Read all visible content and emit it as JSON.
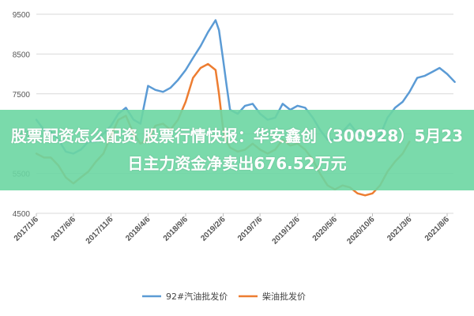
{
  "colors": {
    "series_92": "#5b9bd5",
    "series_diesel": "#ed7d31",
    "grid": "#d9d9d9",
    "banner": "#6cd6a3"
  },
  "overlay": {
    "title": "股票配资怎么配资 股票行情快报：华安鑫创（300928）5月23日主力资金净卖出676.52万元"
  },
  "chart_data": {
    "type": "line",
    "title": "",
    "xlabel": "",
    "ylabel": "",
    "ylim": [
      4500,
      9500
    ],
    "y_ticks": [
      "9500",
      "8500",
      "7500",
      "6500",
      "5500",
      "4500"
    ],
    "y_tick_values": [
      9500,
      8500,
      7500,
      6500,
      5500,
      4500
    ],
    "x_tick_labels": [
      "2017/1/6",
      "2017/6/6",
      "2017/11/6",
      "2018/4/6",
      "2018/9/6",
      "2019/2/6",
      "2019/7/6",
      "2019/12/6",
      "2020/5/6",
      "2020/10/6",
      "2021/3/6",
      "2021/8/6"
    ],
    "legend_position": "bottom",
    "grid": true,
    "series": [
      {
        "name": "92#汽油批发价",
        "color_key": "series_92",
        "points": [
          [
            "2017/1/6",
            6850
          ],
          [
            "2017/2/6",
            6600
          ],
          [
            "2017/3/6",
            6550
          ],
          [
            "2017/4/6",
            6350
          ],
          [
            "2017/5/6",
            6050
          ],
          [
            "2017/6/6",
            6000
          ],
          [
            "2017/7/6",
            6100
          ],
          [
            "2017/8/6",
            6300
          ],
          [
            "2017/9/6",
            6300
          ],
          [
            "2017/10/6",
            6500
          ],
          [
            "2017/11/6",
            6700
          ],
          [
            "2017/12/6",
            7000
          ],
          [
            "2018/1/6",
            7150
          ],
          [
            "2018/2/6",
            6850
          ],
          [
            "2018/3/6",
            6750
          ],
          [
            "2018/4/6",
            7700
          ],
          [
            "2018/5/6",
            7600
          ],
          [
            "2018/6/6",
            7550
          ],
          [
            "2018/7/6",
            7650
          ],
          [
            "2018/8/6",
            7850
          ],
          [
            "2018/9/6",
            8100
          ],
          [
            "2018/10/6",
            8400
          ],
          [
            "2018/11/6",
            8700
          ],
          [
            "2018/12/6",
            9050
          ],
          [
            "2019/1/6",
            9350
          ],
          [
            "2019/1/20",
            9100
          ],
          [
            "2019/2/6",
            8350
          ],
          [
            "2019/2/20",
            7700
          ],
          [
            "2019/3/6",
            7100
          ],
          [
            "2019/4/6",
            7000
          ],
          [
            "2019/5/6",
            7200
          ],
          [
            "2019/6/6",
            7250
          ],
          [
            "2019/7/6",
            7000
          ],
          [
            "2019/8/6",
            6850
          ],
          [
            "2019/9/6",
            6900
          ],
          [
            "2019/10/6",
            7250
          ],
          [
            "2019/11/6",
            7100
          ],
          [
            "2019/12/6",
            7200
          ],
          [
            "2020/1/6",
            7150
          ],
          [
            "2020/2/6",
            6900
          ],
          [
            "2020/3/6",
            6600
          ],
          [
            "2020/4/6",
            6350
          ],
          [
            "2020/5/6",
            6350
          ],
          [
            "2020/6/6",
            6550
          ],
          [
            "2020/7/6",
            6750
          ],
          [
            "2020/8/6",
            6500
          ],
          [
            "2020/9/6",
            6400
          ],
          [
            "2020/10/6",
            6350
          ],
          [
            "2020/11/6",
            6450
          ],
          [
            "2020/12/6",
            6900
          ],
          [
            "2021/1/6",
            7150
          ],
          [
            "2021/2/6",
            7300
          ],
          [
            "2021/3/6",
            7550
          ],
          [
            "2021/4/6",
            7900
          ],
          [
            "2021/5/6",
            7950
          ],
          [
            "2021/6/6",
            8050
          ],
          [
            "2021/7/6",
            8150
          ],
          [
            "2021/8/6",
            8000
          ],
          [
            "2021/9/6",
            7800
          ]
        ]
      },
      {
        "name": "柴油批发价",
        "color_key": "series_diesel",
        "points": [
          [
            "2017/1/6",
            6000
          ],
          [
            "2017/2/6",
            5900
          ],
          [
            "2017/3/6",
            5900
          ],
          [
            "2017/4/6",
            5700
          ],
          [
            "2017/5/6",
            5400
          ],
          [
            "2017/6/6",
            5250
          ],
          [
            "2017/7/6",
            5400
          ],
          [
            "2017/8/6",
            5550
          ],
          [
            "2017/9/6",
            5800
          ],
          [
            "2017/10/6",
            6000
          ],
          [
            "2017/11/6",
            6450
          ],
          [
            "2017/12/6",
            6850
          ],
          [
            "2018/1/6",
            6950
          ],
          [
            "2018/2/6",
            6500
          ],
          [
            "2018/3/6",
            6250
          ],
          [
            "2018/4/6",
            6350
          ],
          [
            "2018/5/6",
            6700
          ],
          [
            "2018/6/6",
            6750
          ],
          [
            "2018/7/6",
            6600
          ],
          [
            "2018/8/6",
            6850
          ],
          [
            "2018/9/6",
            7300
          ],
          [
            "2018/10/6",
            7900
          ],
          [
            "2018/11/6",
            8150
          ],
          [
            "2018/12/6",
            8250
          ],
          [
            "2019/1/6",
            8100
          ],
          [
            "2019/1/20",
            7500
          ],
          [
            "2019/2/6",
            6600
          ],
          [
            "2019/2/20",
            6300
          ],
          [
            "2019/3/6",
            6150
          ],
          [
            "2019/4/6",
            6050
          ],
          [
            "2019/5/6",
            6100
          ],
          [
            "2019/6/6",
            6250
          ],
          [
            "2019/7/6",
            6100
          ],
          [
            "2019/8/6",
            6000
          ],
          [
            "2019/9/6",
            6100
          ],
          [
            "2019/10/6",
            6350
          ],
          [
            "2019/11/6",
            6200
          ],
          [
            "2019/12/6",
            6250
          ],
          [
            "2020/1/6",
            6100
          ],
          [
            "2020/2/6",
            5850
          ],
          [
            "2020/3/6",
            5500
          ],
          [
            "2020/4/6",
            5200
          ],
          [
            "2020/5/6",
            5100
          ],
          [
            "2020/6/6",
            5200
          ],
          [
            "2020/7/6",
            5150
          ],
          [
            "2020/8/6",
            5000
          ],
          [
            "2020/9/6",
            4950
          ],
          [
            "2020/10/6",
            5000
          ],
          [
            "2020/11/6",
            5200
          ],
          [
            "2020/12/6",
            5550
          ],
          [
            "2021/1/6",
            5800
          ],
          [
            "2021/2/6",
            6000
          ],
          [
            "2021/3/6",
            6300
          ]
        ]
      }
    ]
  }
}
